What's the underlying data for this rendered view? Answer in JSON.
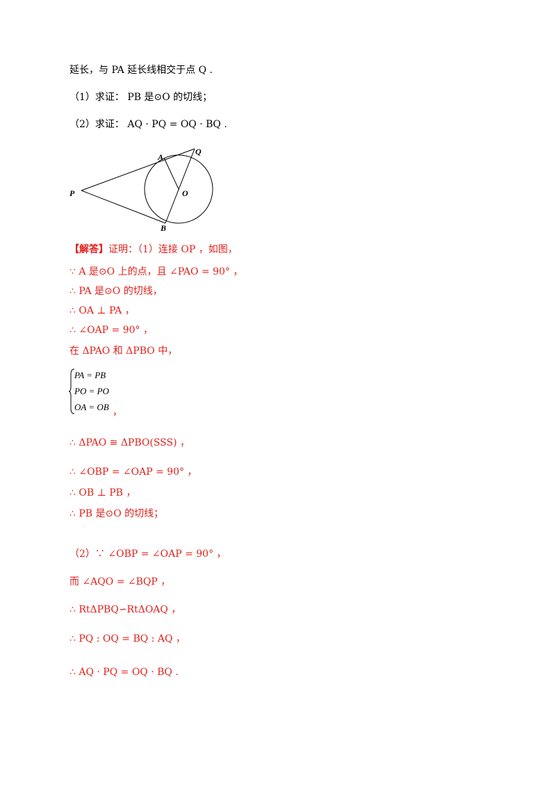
{
  "problem": {
    "intro": "延长，与 PA 延长线相交于点 Q .",
    "q1": "（1）求证： PB 是⊙O 的切线；",
    "q2": "（2）求证： AQ · PQ = OQ · BQ ."
  },
  "figure": {
    "points": {
      "A": "A",
      "Q": "Q",
      "P": "P",
      "O": "O",
      "B": "B"
    }
  },
  "solution": {
    "tag": "【解答】",
    "l1": "证明：（1）连接 OP ，如图，",
    "l2": "∵ A 是⊙O 上的点，且 ∠PAO = 90° ，",
    "l3": "∴ PA 是⊙O 的切线，",
    "l4": "∴ OA ⊥ PA ，",
    "l5": "∴ ∠OAP = 90° ，",
    "l6": "在 ΔPAO 和 ΔPBO 中，",
    "sys": [
      "PA = PB",
      "PO = PO",
      "OA = OB"
    ],
    "sys_end": "，",
    "l7": "∴ ΔPAO ≅ ΔPBO(SSS) ，",
    "l8": "∴ ∠OBP = ∠OAP = 90° ，",
    "l9": "∴ OB ⊥ PB ，",
    "l10": "∴ PB 是⊙O 的切线；",
    "l11": "（2）∵ ∠OBP = ∠OAP = 90° ，",
    "l12": "而 ∠AQO = ∠BQP ，",
    "l13": "∴ RtΔPBQ∽RtΔOAQ ，",
    "l14": "∴ PQ : OQ = BQ : AQ ，",
    "l15": "∴ AQ · PQ = OQ · BQ ."
  }
}
